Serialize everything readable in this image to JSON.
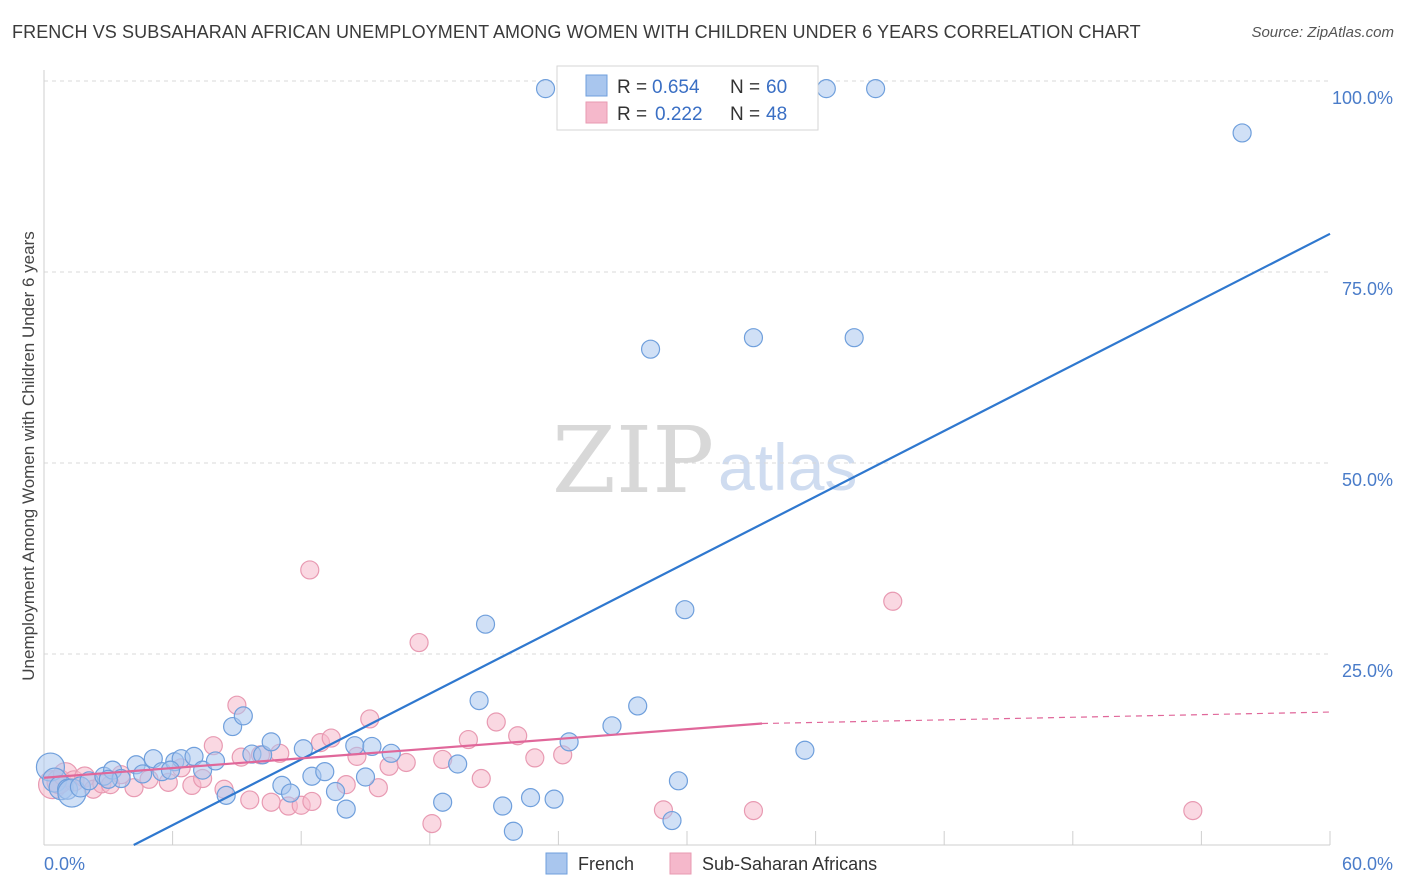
{
  "header": {
    "title": "FRENCH VS SUBSAHARAN AFRICAN UNEMPLOYMENT AMONG WOMEN WITH CHILDREN UNDER 6 YEARS CORRELATION CHART",
    "source": "Source: ZipAtlas.com"
  },
  "watermark": {
    "zip": "ZIP",
    "atlas": "atlas"
  },
  "legend": {
    "r_label": "R =",
    "n_label": "N =",
    "french": {
      "r": "0.654",
      "n": "60"
    },
    "african": {
      "r": "0.222",
      "n": "48"
    }
  },
  "bottom_legend": {
    "french": "French",
    "african": "Sub-Saharan Africans"
  },
  "colors": {
    "french_fill": "#a9c6ee",
    "french_stroke": "#6f9fdc",
    "french_line": "#2f78cf",
    "african_fill": "#f5b8cb",
    "african_stroke": "#e89ab2",
    "african_line": "#e0679a",
    "grid": "#d9d9d9"
  },
  "chart_data": {
    "type": "scatter",
    "title": "FRENCH VS SUBSAHARAN AFRICAN UNEMPLOYMENT AMONG WOMEN WITH CHILDREN UNDER 6 YEARS CORRELATION CHART",
    "ylabel": "Unemployment Among Women with Children Under 6 years",
    "xlabel": "",
    "xlim": [
      0,
      60
    ],
    "ylim": [
      0,
      100
    ],
    "x_tick_labels": {
      "left": "0.0%",
      "right": "60.0%"
    },
    "y_ticks": [
      {
        "value": 25,
        "label": "25.0%"
      },
      {
        "value": 50,
        "label": "50.0%"
      },
      {
        "value": 75,
        "label": "75.0%"
      },
      {
        "value": 100,
        "label": "100.0%"
      }
    ],
    "series": [
      {
        "name": "French",
        "r": 0.654,
        "n": 60,
        "trend": {
          "x0": 0,
          "y0": -6,
          "x1": 60,
          "y1": 80
        },
        "points": [
          [
            0.3,
            10.2,
            14
          ],
          [
            0.5,
            8.5,
            12
          ],
          [
            0.8,
            7.5,
            12
          ],
          [
            1.1,
            7.3,
            10
          ],
          [
            1.3,
            6.8,
            14
          ],
          [
            1.7,
            7.6,
            10
          ],
          [
            2.1,
            8.4,
            9
          ],
          [
            2.8,
            9.0,
            9
          ],
          [
            3.2,
            9.8,
            9
          ],
          [
            3.6,
            8.7,
            9
          ],
          [
            4.3,
            10.5,
            9
          ],
          [
            4.6,
            9.3,
            9
          ],
          [
            5.1,
            11.3,
            9
          ],
          [
            5.5,
            9.6,
            9
          ],
          [
            6.1,
            10.9,
            9
          ],
          [
            6.4,
            11.3,
            9
          ],
          [
            7.0,
            11.6,
            9
          ],
          [
            7.4,
            9.8,
            9
          ],
          [
            8.0,
            11.0,
            9
          ],
          [
            8.5,
            6.5,
            9
          ],
          [
            8.8,
            15.5,
            9
          ],
          [
            9.3,
            16.9,
            9
          ],
          [
            9.7,
            11.9,
            9
          ],
          [
            10.2,
            11.8,
            9
          ],
          [
            10.6,
            13.5,
            9
          ],
          [
            11.1,
            7.8,
            9
          ],
          [
            11.5,
            6.8,
            9
          ],
          [
            12.1,
            12.6,
            9
          ],
          [
            12.5,
            9.0,
            9
          ],
          [
            13.1,
            9.6,
            9
          ],
          [
            13.6,
            7.0,
            9
          ],
          [
            14.1,
            4.7,
            9
          ],
          [
            14.5,
            13.0,
            9
          ],
          [
            15.0,
            8.9,
            9
          ],
          [
            15.3,
            12.9,
            9
          ],
          [
            18.6,
            5.6,
            9
          ],
          [
            19.3,
            10.6,
            9
          ],
          [
            20.3,
            18.9,
            9
          ],
          [
            20.6,
            28.9,
            9
          ],
          [
            21.4,
            5.1,
            9
          ],
          [
            21.9,
            1.8,
            9
          ],
          [
            22.7,
            6.2,
            9
          ],
          [
            23.8,
            6.0,
            9
          ],
          [
            24.5,
            13.5,
            9
          ],
          [
            26.5,
            15.6,
            9
          ],
          [
            27.7,
            18.2,
            9
          ],
          [
            28.3,
            64.9,
            9
          ],
          [
            29.3,
            3.2,
            9
          ],
          [
            29.6,
            8.4,
            9
          ],
          [
            29.9,
            30.8,
            9
          ],
          [
            33.1,
            66.4,
            9
          ],
          [
            35.5,
            12.4,
            9
          ],
          [
            37.8,
            66.4,
            9
          ],
          [
            23.4,
            99.0,
            9
          ],
          [
            36.5,
            99.0,
            9
          ],
          [
            38.8,
            99.0,
            9
          ],
          [
            55.9,
            93.2,
            9
          ],
          [
            16.2,
            12.0,
            9
          ],
          [
            5.9,
            9.8,
            9
          ],
          [
            3.0,
            8.6,
            9
          ]
        ]
      },
      {
        "name": "Sub-Saharan Africans",
        "r": 0.222,
        "n": 48,
        "trend": {
          "x0": 0,
          "y0": 8.8,
          "x1": 33.5,
          "y1": 15.9,
          "dash_to_x": 60,
          "dash_to_y": 17.4
        },
        "points": [
          [
            0.4,
            7.9,
            14
          ],
          [
            0.7,
            8.3,
            12
          ],
          [
            1.0,
            9.2,
            12
          ],
          [
            1.4,
            8.4,
            10
          ],
          [
            1.9,
            8.9,
            10
          ],
          [
            2.3,
            7.3,
            9
          ],
          [
            2.7,
            8.0,
            9
          ],
          [
            3.1,
            7.9,
            9
          ],
          [
            3.6,
            9.2,
            9
          ],
          [
            4.2,
            7.5,
            9
          ],
          [
            4.9,
            8.6,
            9
          ],
          [
            5.8,
            8.2,
            9
          ],
          [
            6.4,
            10.1,
            9
          ],
          [
            6.9,
            7.8,
            9
          ],
          [
            7.4,
            8.7,
            9
          ],
          [
            7.9,
            13.0,
            9
          ],
          [
            8.4,
            7.3,
            9
          ],
          [
            9.2,
            11.5,
            9
          ],
          [
            9.6,
            5.9,
            9
          ],
          [
            10.1,
            11.8,
            9
          ],
          [
            10.6,
            5.6,
            9
          ],
          [
            11.4,
            5.1,
            9
          ],
          [
            12.0,
            5.2,
            9
          ],
          [
            12.5,
            5.7,
            9
          ],
          [
            12.9,
            13.4,
            9
          ],
          [
            13.4,
            14.0,
            9
          ],
          [
            14.1,
            7.9,
            9
          ],
          [
            14.6,
            11.6,
            9
          ],
          [
            15.2,
            16.5,
            9
          ],
          [
            15.6,
            7.5,
            9
          ],
          [
            16.1,
            10.3,
            9
          ],
          [
            16.9,
            10.8,
            9
          ],
          [
            17.5,
            26.5,
            9
          ],
          [
            18.1,
            2.8,
            9
          ],
          [
            18.6,
            11.2,
            9
          ],
          [
            19.8,
            13.8,
            9
          ],
          [
            20.4,
            8.7,
            9
          ],
          [
            21.1,
            16.1,
            9
          ],
          [
            22.1,
            14.3,
            9
          ],
          [
            22.9,
            11.4,
            9
          ],
          [
            24.2,
            11.8,
            9
          ],
          [
            12.4,
            36.0,
            9
          ],
          [
            9.0,
            18.3,
            9
          ],
          [
            28.9,
            4.6,
            9
          ],
          [
            33.1,
            4.5,
            9
          ],
          [
            39.6,
            31.9,
            9
          ],
          [
            53.6,
            4.5,
            9
          ],
          [
            11.0,
            12.0,
            9
          ]
        ]
      }
    ]
  }
}
